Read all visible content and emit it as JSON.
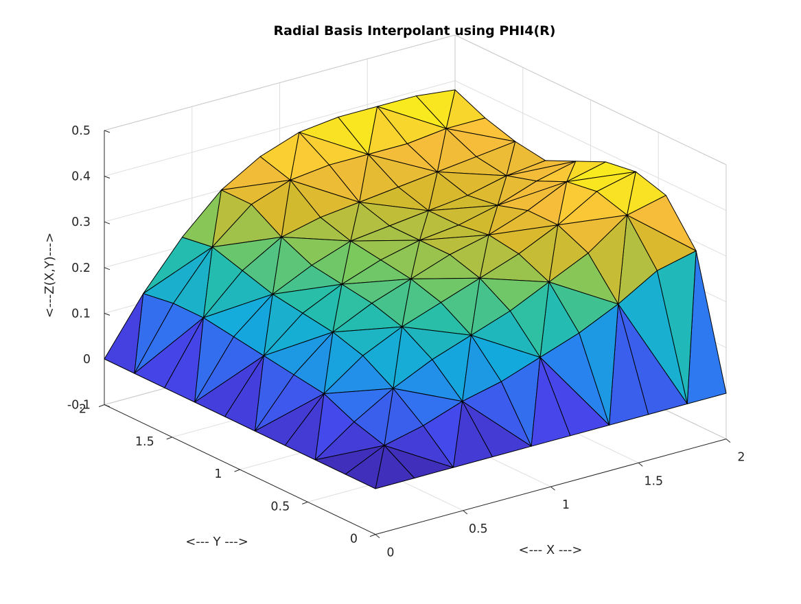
{
  "chart_data": {
    "type": "surface",
    "title": "Radial Basis Interpolant using PHI4(R)",
    "xlabel": "<--- X --->",
    "ylabel": "<--- Y --->",
    "zlabel": "<---Z(X,Y)--->",
    "xlim": [
      0,
      2
    ],
    "ylim": [
      0,
      2
    ],
    "zlim": [
      -0.1,
      0.5
    ],
    "x_ticks": [
      0,
      0.5,
      1,
      1.5,
      2
    ],
    "y_ticks": [
      0,
      0.5,
      1,
      1.5,
      2
    ],
    "z_ticks": [
      -0.1,
      0,
      0.1,
      0.2,
      0.3,
      0.4,
      0.5
    ],
    "x_tick_labels": [
      "0",
      "0.5",
      "1",
      "1.5",
      "2"
    ],
    "y_tick_labels": [
      "0",
      "0.5",
      "1",
      "1.5",
      "2"
    ],
    "z_tick_labels": [
      "-0.1",
      "0",
      "0.1",
      "0.2",
      "0.3",
      "0.4",
      "0.5"
    ],
    "grid": true,
    "colormap": "parula",
    "edge_color": "#000000",
    "x": [
      0,
      0.222,
      0.444,
      0.667,
      0.889,
      1.111,
      1.333,
      1.556,
      1.778,
      2
    ],
    "y": [
      0,
      0.222,
      0.444,
      0.667,
      0.889,
      1.111,
      1.333,
      1.556,
      1.778,
      2
    ],
    "z": [
      [
        0.0,
        0.0,
        0.0,
        0.0,
        0.0,
        0.0,
        0.0,
        0.0,
        0.0,
        0.0
      ],
      [
        0.0,
        0.04,
        0.06,
        0.09,
        0.11,
        0.14,
        0.17,
        0.21,
        0.26,
        0.28
      ],
      [
        0.0,
        0.06,
        0.11,
        0.15,
        0.18,
        0.21,
        0.25,
        0.29,
        0.35,
        0.37
      ],
      [
        0.0,
        0.09,
        0.15,
        0.19,
        0.22,
        0.25,
        0.28,
        0.32,
        0.37,
        0.39
      ],
      [
        0.0,
        0.1,
        0.17,
        0.21,
        0.24,
        0.27,
        0.29,
        0.32,
        0.36,
        0.38
      ],
      [
        0.0,
        0.11,
        0.18,
        0.22,
        0.25,
        0.27,
        0.28,
        0.3,
        0.33,
        0.35
      ],
      [
        0.0,
        0.12,
        0.19,
        0.23,
        0.26,
        0.27,
        0.28,
        0.29,
        0.31,
        0.32
      ],
      [
        0.0,
        0.13,
        0.21,
        0.26,
        0.28,
        0.29,
        0.3,
        0.31,
        0.32,
        0.33
      ],
      [
        0.0,
        0.13,
        0.23,
        0.3,
        0.33,
        0.34,
        0.34,
        0.34,
        0.35,
        0.35
      ],
      [
        0.0,
        0.12,
        0.22,
        0.3,
        0.35,
        0.38,
        0.39,
        0.39,
        0.39,
        0.38
      ]
    ]
  }
}
